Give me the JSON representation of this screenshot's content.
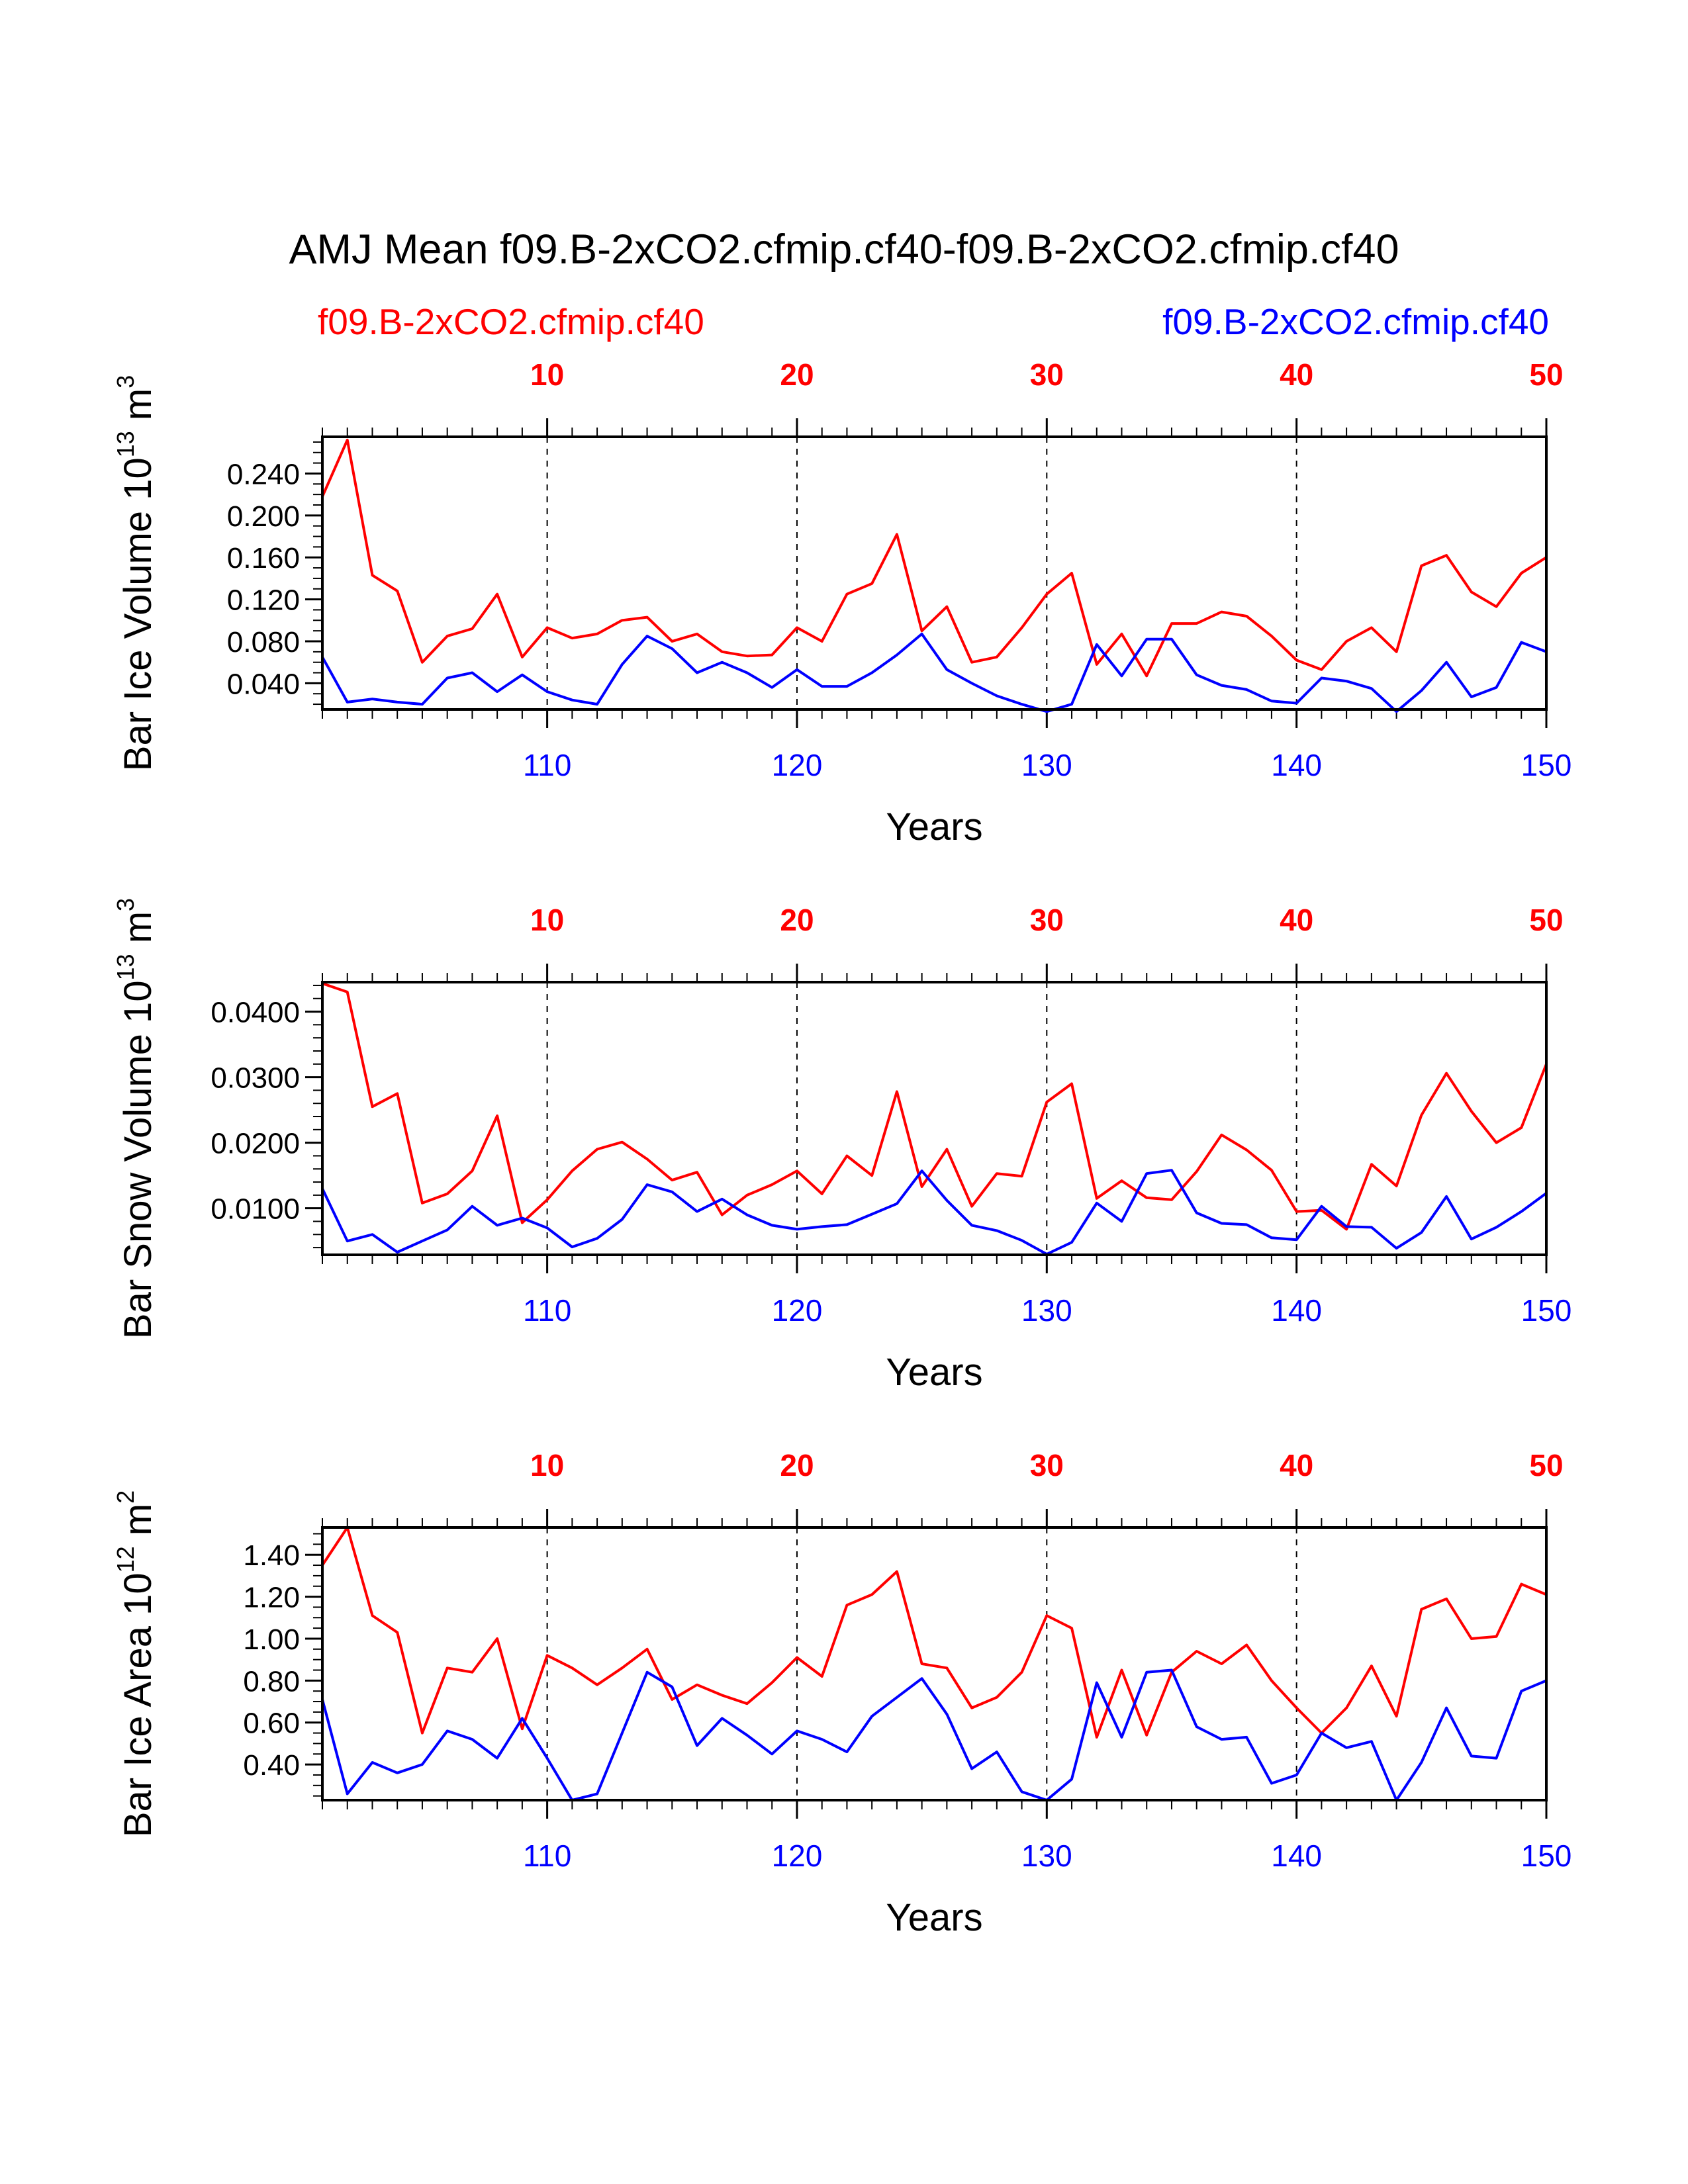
{
  "title": "AMJ Mean f09.B-2xCO2.cfmip.cf40-f09.B-2xCO2.cfmip.cf40",
  "legend": {
    "left_label": "f09.B-2xCO2.cfmip.cf40",
    "right_label": "f09.B-2xCO2.cfmip.cf40"
  },
  "colors": {
    "series_a": "#ff0000",
    "series_b": "#0000ff",
    "axis": "#000000"
  },
  "chart_data": [
    {
      "type": "line",
      "ylabel": "Bar Ice Volume 10",
      "ylabel_exp": "13",
      "ylabel_unit": " m",
      "ylabel_unit_exp": "3",
      "xlabel": "Years",
      "ylim": [
        0.015,
        0.275
      ],
      "yticks": [
        0.04,
        0.08,
        0.12,
        0.16,
        0.2,
        0.24
      ],
      "ytick_labels": [
        "0.040",
        "0.080",
        "0.120",
        "0.160",
        "0.200",
        "0.240"
      ],
      "yminor_step": 0.01,
      "x_top_ticks": [
        10,
        20,
        30,
        40,
        50
      ],
      "x_bottom_ticks": [
        110,
        120,
        130,
        140,
        150
      ],
      "x_bottom_offset": 100,
      "xlim": [
        1,
        50
      ],
      "series": [
        {
          "name": "f09.B-2xCO2.cfmip.cf40",
          "color": "red",
          "axis": "top",
          "x": [
            1,
            2,
            3,
            4,
            5,
            6,
            7,
            8,
            9,
            10,
            11,
            12,
            13,
            14,
            15,
            16,
            17,
            18,
            19,
            20,
            21,
            22,
            23,
            24,
            25,
            26,
            27,
            28,
            29,
            30,
            31,
            32,
            33,
            34,
            35,
            36,
            37,
            38,
            39,
            40,
            41,
            42,
            43,
            44,
            45,
            46,
            47,
            48,
            49,
            50
          ],
          "values": [
            0.218,
            0.272,
            0.143,
            0.128,
            0.06,
            0.085,
            0.092,
            0.125,
            0.065,
            0.093,
            0.083,
            0.087,
            0.1,
            0.103,
            0.08,
            0.087,
            0.07,
            0.066,
            0.067,
            0.093,
            0.08,
            0.125,
            0.135,
            0.182,
            0.09,
            0.113,
            0.06,
            0.065,
            0.093,
            0.125,
            0.145,
            0.058,
            0.087,
            0.047,
            0.097,
            0.097,
            0.108,
            0.104,
            0.085,
            0.062,
            0.053,
            0.08,
            0.093,
            0.07,
            0.152,
            0.162,
            0.127,
            0.113,
            0.145,
            0.16
          ]
        },
        {
          "name": "f09.B-2xCO2.cfmip.cf40",
          "color": "blue",
          "axis": "bottom",
          "x": [
            101,
            102,
            103,
            104,
            105,
            106,
            107,
            108,
            109,
            110,
            111,
            112,
            113,
            114,
            115,
            116,
            117,
            118,
            119,
            120,
            121,
            122,
            123,
            124,
            125,
            126,
            127,
            128,
            129,
            130,
            131,
            132,
            133,
            134,
            135,
            136,
            137,
            138,
            139,
            140,
            141,
            142,
            143,
            144,
            145,
            146,
            147,
            148,
            149,
            150
          ],
          "values": [
            0.065,
            0.022,
            0.025,
            0.022,
            0.02,
            0.045,
            0.05,
            0.032,
            0.048,
            0.032,
            0.024,
            0.02,
            0.058,
            0.085,
            0.073,
            0.05,
            0.06,
            0.05,
            0.036,
            0.053,
            0.037,
            0.037,
            0.05,
            0.067,
            0.087,
            0.053,
            0.04,
            0.028,
            0.02,
            0.013,
            0.02,
            0.077,
            0.047,
            0.082,
            0.082,
            0.048,
            0.038,
            0.034,
            0.023,
            0.021,
            0.045,
            0.042,
            0.035,
            0.013,
            0.033,
            0.06,
            0.027,
            0.036,
            0.079,
            0.07
          ]
        }
      ]
    },
    {
      "type": "line",
      "ylabel": "Bar Snow Volume 10",
      "ylabel_exp": "13",
      "ylabel_unit": " m",
      "ylabel_unit_exp": "3",
      "xlabel": "Years",
      "ylim": [
        0.0029,
        0.0445
      ],
      "yticks": [
        0.01,
        0.02,
        0.03,
        0.04
      ],
      "ytick_labels": [
        "0.0100",
        "0.0200",
        "0.0300",
        "0.0400"
      ],
      "yminor_step": 0.002,
      "x_top_ticks": [
        10,
        20,
        30,
        40,
        50
      ],
      "x_bottom_ticks": [
        110,
        120,
        130,
        140,
        150
      ],
      "x_bottom_offset": 100,
      "xlim": [
        1,
        50
      ],
      "series": [
        {
          "name": "f09.B-2xCO2.cfmip.cf40",
          "color": "red",
          "axis": "top",
          "x": [
            1,
            2,
            3,
            4,
            5,
            6,
            7,
            8,
            9,
            10,
            11,
            12,
            13,
            14,
            15,
            16,
            17,
            18,
            19,
            20,
            21,
            22,
            23,
            24,
            25,
            26,
            27,
            28,
            29,
            30,
            31,
            32,
            33,
            34,
            35,
            36,
            37,
            38,
            39,
            40,
            41,
            42,
            43,
            44,
            45,
            46,
            47,
            48,
            49,
            50
          ],
          "values": [
            0.0443,
            0.043,
            0.0255,
            0.0275,
            0.0108,
            0.0122,
            0.0157,
            0.0241,
            0.0078,
            0.0113,
            0.0157,
            0.019,
            0.0201,
            0.0175,
            0.0143,
            0.0155,
            0.009,
            0.012,
            0.0136,
            0.0157,
            0.0122,
            0.018,
            0.015,
            0.0278,
            0.0133,
            0.019,
            0.0103,
            0.0153,
            0.0149,
            0.0262,
            0.029,
            0.0115,
            0.0142,
            0.0116,
            0.0113,
            0.0156,
            0.0212,
            0.0189,
            0.0158,
            0.0095,
            0.0097,
            0.0068,
            0.0167,
            0.0134,
            0.0242,
            0.0306,
            0.0248,
            0.02,
            0.0223,
            0.032
          ]
        },
        {
          "name": "f09.B-2xCO2.cfmip.cf40",
          "color": "blue",
          "axis": "bottom",
          "x": [
            101,
            102,
            103,
            104,
            105,
            106,
            107,
            108,
            109,
            110,
            111,
            112,
            113,
            114,
            115,
            116,
            117,
            118,
            119,
            120,
            121,
            122,
            123,
            124,
            125,
            126,
            127,
            128,
            129,
            130,
            131,
            132,
            133,
            134,
            135,
            136,
            137,
            138,
            139,
            140,
            141,
            142,
            143,
            144,
            145,
            146,
            147,
            148,
            149,
            150
          ],
          "values": [
            0.013,
            0.005,
            0.006,
            0.0033,
            0.005,
            0.0067,
            0.0103,
            0.0074,
            0.0085,
            0.007,
            0.0041,
            0.0054,
            0.0083,
            0.0136,
            0.0125,
            0.0095,
            0.0114,
            0.009,
            0.0074,
            0.0068,
            0.0072,
            0.0075,
            0.0091,
            0.0107,
            0.0157,
            0.0112,
            0.0074,
            0.0066,
            0.0051,
            0.003,
            0.0048,
            0.0108,
            0.008,
            0.0153,
            0.0158,
            0.0093,
            0.0077,
            0.0075,
            0.0055,
            0.0052,
            0.0103,
            0.0072,
            0.0071,
            0.0039,
            0.0063,
            0.0118,
            0.0053,
            0.0071,
            0.0095,
            0.0123
          ]
        }
      ]
    },
    {
      "type": "line",
      "ylabel": "Bar Ice Area 10",
      "ylabel_exp": "12",
      "ylabel_unit": " m",
      "ylabel_unit_exp": "2",
      "xlabel": "Years",
      "ylim": [
        0.23,
        1.53
      ],
      "yticks": [
        0.4,
        0.6,
        0.8,
        1.0,
        1.2,
        1.4
      ],
      "ytick_labels": [
        "0.40",
        "0.60",
        "0.80",
        "1.00",
        "1.20",
        "1.40"
      ],
      "yminor_step": 0.05,
      "x_top_ticks": [
        10,
        20,
        30,
        40,
        50
      ],
      "x_bottom_ticks": [
        110,
        120,
        130,
        140,
        150
      ],
      "x_bottom_offset": 100,
      "xlim": [
        1,
        50
      ],
      "series": [
        {
          "name": "f09.B-2xCO2.cfmip.cf40",
          "color": "red",
          "axis": "top",
          "x": [
            1,
            2,
            3,
            4,
            5,
            6,
            7,
            8,
            9,
            10,
            11,
            12,
            13,
            14,
            15,
            16,
            17,
            18,
            19,
            20,
            21,
            22,
            23,
            24,
            25,
            26,
            27,
            28,
            29,
            30,
            31,
            32,
            33,
            34,
            35,
            36,
            37,
            38,
            39,
            40,
            41,
            42,
            43,
            44,
            45,
            46,
            47,
            48,
            49,
            50
          ],
          "values": [
            1.35,
            1.53,
            1.11,
            1.03,
            0.55,
            0.86,
            0.84,
            1.0,
            0.57,
            0.92,
            0.86,
            0.78,
            0.86,
            0.95,
            0.71,
            0.78,
            0.73,
            0.69,
            0.79,
            0.91,
            0.82,
            1.16,
            1.21,
            1.32,
            0.88,
            0.86,
            0.67,
            0.72,
            0.84,
            1.11,
            1.05,
            0.53,
            0.85,
            0.54,
            0.84,
            0.94,
            0.88,
            0.97,
            0.8,
            0.67,
            0.55,
            0.67,
            0.87,
            0.63,
            1.14,
            1.19,
            1.0,
            1.01,
            1.26,
            1.21
          ]
        },
        {
          "name": "f09.B-2xCO2.cfmip.cf40",
          "color": "blue",
          "axis": "bottom",
          "x": [
            101,
            102,
            103,
            104,
            105,
            106,
            107,
            108,
            109,
            110,
            111,
            112,
            113,
            114,
            115,
            116,
            117,
            118,
            119,
            120,
            121,
            122,
            123,
            124,
            125,
            126,
            127,
            128,
            129,
            130,
            131,
            132,
            133,
            134,
            135,
            136,
            137,
            138,
            139,
            140,
            141,
            142,
            143,
            144,
            145,
            146,
            147,
            148,
            149,
            150
          ],
          "values": [
            0.71,
            0.26,
            0.41,
            0.36,
            0.4,
            0.56,
            0.52,
            0.43,
            0.62,
            0.43,
            0.23,
            0.26,
            0.55,
            0.84,
            0.77,
            0.49,
            0.62,
            0.54,
            0.45,
            0.56,
            0.52,
            0.46,
            0.63,
            0.72,
            0.81,
            0.64,
            0.38,
            0.46,
            0.27,
            0.23,
            0.33,
            0.79,
            0.53,
            0.84,
            0.85,
            0.58,
            0.52,
            0.53,
            0.31,
            0.35,
            0.55,
            0.48,
            0.51,
            0.23,
            0.41,
            0.67,
            0.44,
            0.43,
            0.75,
            0.8
          ]
        }
      ]
    }
  ]
}
